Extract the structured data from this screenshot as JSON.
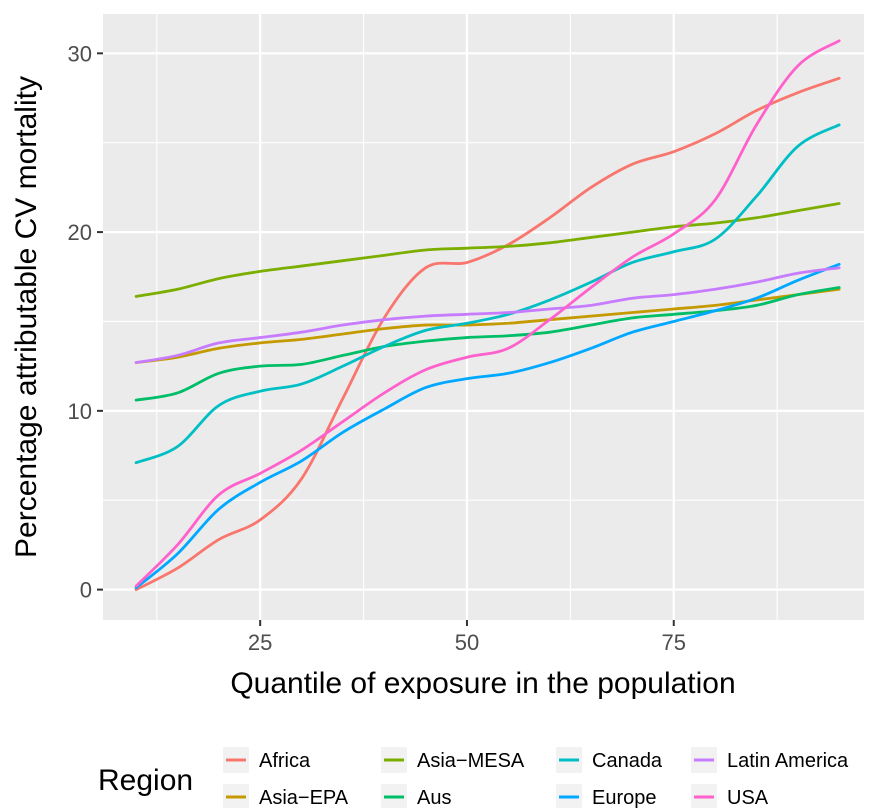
{
  "chart_data": {
    "type": "line",
    "xlabel": "Quantile of exposure in the population",
    "ylabel": "Percentage attributable CV mortality",
    "xlim": [
      6,
      98
    ],
    "ylim": [
      -1.7,
      32.2
    ],
    "x_ticks": [
      25,
      50,
      75
    ],
    "x_tick_labels": [
      "25",
      "50",
      "75"
    ],
    "y_ticks": [
      0,
      10,
      20,
      30
    ],
    "y_tick_labels": [
      "0",
      "10",
      "20",
      "30"
    ],
    "grid": true,
    "legend_title": "Region",
    "legend_position": "bottom",
    "series": [
      {
        "name": "Africa",
        "color": "#F8766D",
        "x": [
          10,
          15,
          20,
          25,
          30,
          35,
          40,
          45,
          50,
          55,
          60,
          65,
          70,
          75,
          80,
          85,
          90,
          95
        ],
        "y": [
          0.0,
          1.2,
          2.8,
          3.9,
          6.2,
          10.7,
          15.2,
          18.0,
          18.3,
          19.3,
          20.8,
          22.5,
          23.8,
          24.5,
          25.5,
          26.8,
          27.8,
          28.6
        ]
      },
      {
        "name": "Asia−EPA",
        "color": "#C49A00",
        "x": [
          10,
          15,
          20,
          25,
          30,
          35,
          40,
          45,
          50,
          55,
          60,
          65,
          70,
          75,
          80,
          85,
          90,
          95
        ],
        "y": [
          12.7,
          13.0,
          13.5,
          13.8,
          14.0,
          14.3,
          14.6,
          14.8,
          14.8,
          14.9,
          15.1,
          15.3,
          15.5,
          15.7,
          15.9,
          16.2,
          16.5,
          16.8
        ]
      },
      {
        "name": "Asia−MESA",
        "color": "#7CAE00",
        "x": [
          10,
          15,
          20,
          25,
          30,
          35,
          40,
          45,
          50,
          55,
          60,
          65,
          70,
          75,
          80,
          85,
          90,
          95
        ],
        "y": [
          16.4,
          16.8,
          17.4,
          17.8,
          18.1,
          18.4,
          18.7,
          19.0,
          19.1,
          19.2,
          19.4,
          19.7,
          20.0,
          20.3,
          20.5,
          20.8,
          21.2,
          21.6
        ]
      },
      {
        "name": "Aus",
        "color": "#00BE67",
        "x": [
          10,
          15,
          20,
          25,
          30,
          35,
          40,
          45,
          50,
          55,
          60,
          65,
          70,
          75,
          80,
          85,
          90,
          95
        ],
        "y": [
          10.6,
          11.0,
          12.1,
          12.5,
          12.6,
          13.1,
          13.6,
          13.9,
          14.1,
          14.2,
          14.4,
          14.8,
          15.2,
          15.4,
          15.6,
          15.9,
          16.5,
          16.9
        ]
      },
      {
        "name": "Canada",
        "color": "#00BFC4",
        "x": [
          10,
          15,
          20,
          25,
          30,
          35,
          40,
          45,
          50,
          55,
          60,
          65,
          70,
          75,
          80,
          85,
          90,
          95
        ],
        "y": [
          7.1,
          8.0,
          10.3,
          11.1,
          11.5,
          12.5,
          13.6,
          14.5,
          14.9,
          15.4,
          16.2,
          17.2,
          18.3,
          18.9,
          19.6,
          22.0,
          24.8,
          26.0
        ]
      },
      {
        "name": "Europe",
        "color": "#00A9FF",
        "x": [
          10,
          15,
          20,
          25,
          30,
          35,
          40,
          45,
          50,
          55,
          60,
          65,
          70,
          75,
          80,
          85,
          90,
          95
        ],
        "y": [
          0.1,
          2.0,
          4.5,
          6.0,
          7.2,
          8.8,
          10.1,
          11.3,
          11.8,
          12.1,
          12.7,
          13.5,
          14.4,
          15.0,
          15.6,
          16.3,
          17.3,
          18.2
        ]
      },
      {
        "name": "Latin America",
        "color": "#C77CFF",
        "x": [
          10,
          15,
          20,
          25,
          30,
          35,
          40,
          45,
          50,
          55,
          60,
          65,
          70,
          75,
          80,
          85,
          90,
          95
        ],
        "y": [
          12.7,
          13.1,
          13.8,
          14.1,
          14.4,
          14.8,
          15.1,
          15.3,
          15.4,
          15.5,
          15.7,
          15.9,
          16.3,
          16.5,
          16.8,
          17.2,
          17.7,
          18.0
        ]
      },
      {
        "name": "USA",
        "color": "#FF61CC",
        "x": [
          10,
          15,
          20,
          25,
          30,
          35,
          40,
          45,
          50,
          55,
          60,
          65,
          70,
          75,
          80,
          85,
          90,
          95
        ],
        "y": [
          0.2,
          2.5,
          5.3,
          6.5,
          7.8,
          9.4,
          11.0,
          12.3,
          13.0,
          13.5,
          15.1,
          16.9,
          18.6,
          19.9,
          21.8,
          26.0,
          29.3,
          30.7
        ]
      }
    ]
  }
}
